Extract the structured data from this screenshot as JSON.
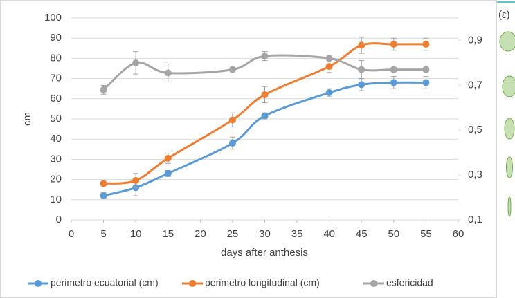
{
  "chart_data": {
    "type": "line",
    "x": [
      5,
      10,
      15,
      25,
      30,
      40,
      45,
      50,
      55
    ],
    "xlim": [
      0,
      60
    ],
    "xticks": [
      0,
      5,
      10,
      15,
      20,
      25,
      30,
      35,
      40,
      45,
      50,
      55,
      60
    ],
    "ylim": [
      0,
      100
    ],
    "yticks": [
      0,
      10,
      20,
      30,
      40,
      50,
      60,
      70,
      80,
      90,
      100
    ],
    "y2lim": [
      0.1,
      1.0
    ],
    "y2ticks": [
      {
        "value": 0.1,
        "label": "0,1"
      },
      {
        "value": 0.3,
        "label": "0,3"
      },
      {
        "value": 0.5,
        "label": "0,5"
      },
      {
        "value": 0.7,
        "label": "0,7"
      },
      {
        "value": 0.9,
        "label": "0,9"
      }
    ],
    "ylabel": "cm",
    "xlabel": "days after anthesis",
    "y2label": "(ε)",
    "grid": true,
    "legend": "bottom",
    "series": [
      {
        "name": "perimetro ecuatorial (cm)",
        "color": "#5b9bd5",
        "values": [
          12,
          16,
          23,
          38,
          51.5,
          63,
          67,
          68,
          68
        ],
        "errors": [
          1.5,
          4,
          1.5,
          3,
          1.5,
          2,
          3,
          3,
          3
        ]
      },
      {
        "name": "perimetro longitudinal  (cm)",
        "color": "#ed7d31",
        "values": [
          18,
          19.5,
          30.5,
          49.5,
          62,
          76,
          86.5,
          87,
          87
        ],
        "errors": [
          1,
          3.5,
          2.5,
          3.5,
          4,
          3,
          4,
          3,
          3
        ]
      },
      {
        "name": "esfericidad",
        "color": "#a5a5a5",
        "axis": "y2",
        "values": [
          0.68,
          0.8,
          0.755,
          0.77,
          0.83,
          0.82,
          0.77,
          0.77,
          0.77
        ],
        "errors": [
          0.02,
          0.05,
          0.04,
          0.01,
          0.02,
          0.01,
          0.04,
          0.01,
          0.01
        ]
      }
    ]
  }
}
